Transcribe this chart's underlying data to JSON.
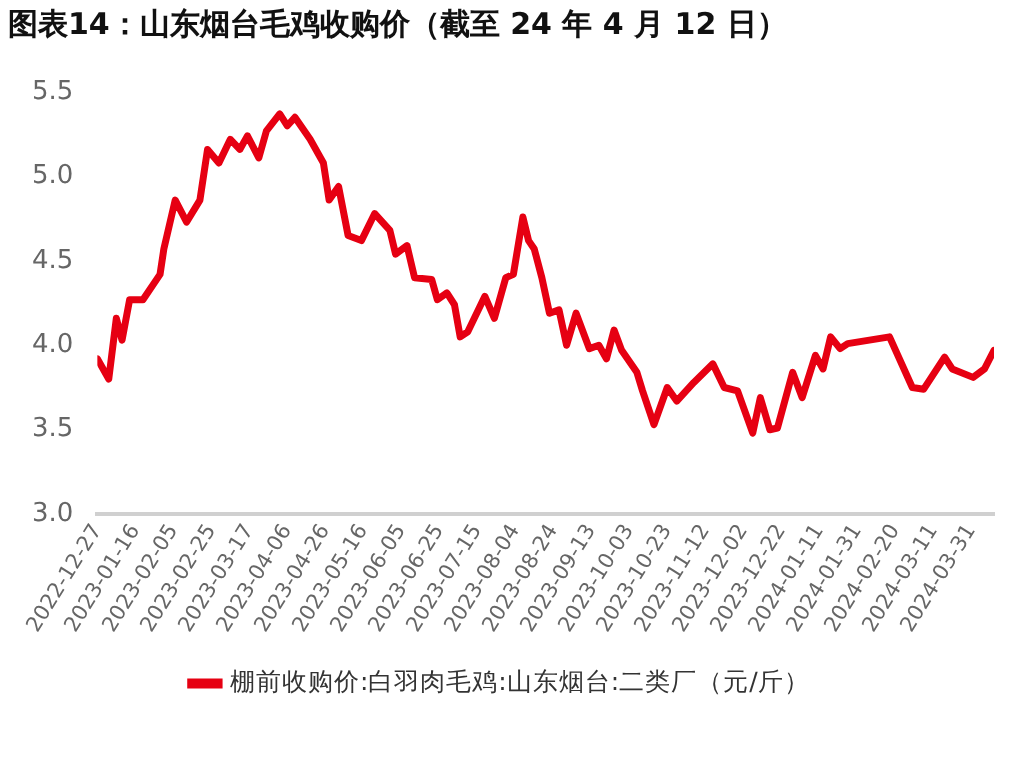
{
  "chart_data": {
    "type": "line",
    "title": "图表14：山东烟台毛鸡收购价（截至 24 年 4 月 12 日）",
    "x": [
      "2022-12-27",
      "2023-01-02",
      "2023-01-06",
      "2023-01-09",
      "2023-01-13",
      "2023-01-20",
      "2023-01-29",
      "2023-01-31",
      "2023-02-06",
      "2023-02-12",
      "2023-02-19",
      "2023-02-23",
      "2023-03-01",
      "2023-03-07",
      "2023-03-12",
      "2023-03-16",
      "2023-03-22",
      "2023-03-26",
      "2023-04-02",
      "2023-04-06",
      "2023-04-10",
      "2023-04-18",
      "2023-04-25",
      "2023-04-28",
      "2023-05-03",
      "2023-05-08",
      "2023-05-15",
      "2023-05-22",
      "2023-05-30",
      "2023-06-02",
      "2023-06-08",
      "2023-06-12",
      "2023-06-21",
      "2023-06-24",
      "2023-06-29",
      "2023-07-03",
      "2023-07-06",
      "2023-07-10",
      "2023-07-19",
      "2023-07-24",
      "2023-07-30",
      "2023-08-03",
      "2023-08-08",
      "2023-08-11",
      "2023-08-14",
      "2023-08-18",
      "2023-08-22",
      "2023-08-27",
      "2023-08-31",
      "2023-09-05",
      "2023-09-12",
      "2023-09-17",
      "2023-09-21",
      "2023-09-25",
      "2023-09-29",
      "2023-10-07",
      "2023-10-10",
      "2023-10-16",
      "2023-10-23",
      "2023-10-28",
      "2023-11-06",
      "2023-11-16",
      "2023-11-22",
      "2023-11-29",
      "2023-12-07",
      "2023-12-11",
      "2023-12-16",
      "2023-12-20",
      "2023-12-28",
      "2024-01-02",
      "2024-01-09",
      "2024-01-13",
      "2024-01-17",
      "2024-01-22",
      "2024-01-26",
      "2024-02-17",
      "2024-02-29",
      "2024-03-06",
      "2024-03-17",
      "2024-03-21",
      "2024-04-01",
      "2024-04-07",
      "2024-04-12"
    ],
    "series": [
      {
        "name": "棚前收购价:白羽肉毛鸡:山东烟台:二类厂（元/斤）",
        "color": "#e60012",
        "values": [
          3.92,
          3.8,
          4.16,
          4.03,
          4.27,
          4.27,
          4.42,
          4.57,
          4.86,
          4.73,
          4.86,
          5.16,
          5.08,
          5.22,
          5.16,
          5.24,
          5.11,
          5.27,
          5.37,
          5.3,
          5.35,
          5.22,
          5.08,
          4.86,
          4.94,
          4.65,
          4.62,
          4.78,
          4.68,
          4.54,
          4.59,
          4.4,
          4.39,
          4.27,
          4.31,
          4.24,
          4.05,
          4.08,
          4.29,
          4.16,
          4.4,
          4.42,
          4.76,
          4.62,
          4.57,
          4.4,
          4.19,
          4.21,
          4.0,
          4.19,
          3.98,
          4.0,
          3.92,
          4.09,
          3.97,
          3.84,
          3.73,
          3.53,
          3.75,
          3.67,
          3.78,
          3.89,
          3.75,
          3.73,
          3.48,
          3.69,
          3.5,
          3.51,
          3.84,
          3.69,
          3.94,
          3.86,
          4.05,
          3.98,
          4.01,
          4.05,
          3.75,
          3.74,
          3.93,
          3.86,
          3.81,
          3.86,
          3.97
        ]
      }
    ],
    "xlim": [
      "2022-12-27",
      "2024-04-12"
    ],
    "xticks": [
      "2022-12-27",
      "2023-01-16",
      "2023-02-05",
      "2023-02-25",
      "2023-03-17",
      "2023-04-06",
      "2023-04-26",
      "2023-05-16",
      "2023-06-05",
      "2023-06-25",
      "2023-07-15",
      "2023-08-04",
      "2023-08-24",
      "2023-09-13",
      "2023-10-03",
      "2023-10-23",
      "2023-11-12",
      "2023-12-02",
      "2023-12-22",
      "2024-01-11",
      "2024-01-31",
      "2024-02-20",
      "2024-03-11",
      "2024-03-31"
    ],
    "ylim": [
      3.0,
      5.5
    ],
    "yticks": [
      {
        "value": 3.0,
        "label": "3.0"
      },
      {
        "value": 3.5,
        "label": "3.5"
      },
      {
        "value": 4.0,
        "label": "4.0"
      },
      {
        "value": 4.5,
        "label": "4.5"
      },
      {
        "value": 5.0,
        "label": "5.0"
      },
      {
        "value": 5.5,
        "label": "5.5"
      }
    ],
    "grid": false,
    "legend": "bottom",
    "marker": "none",
    "line_style": "solid"
  }
}
